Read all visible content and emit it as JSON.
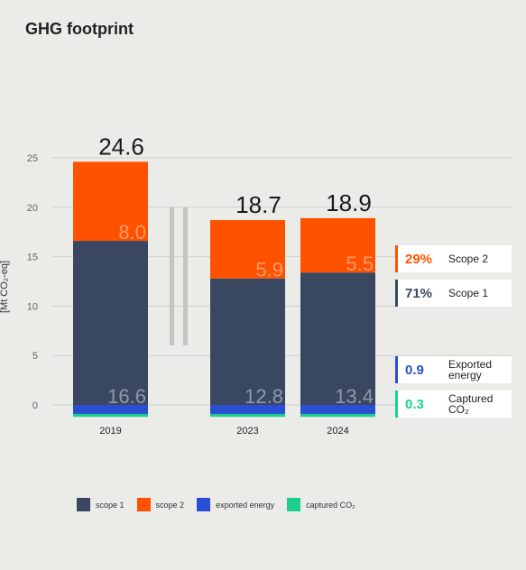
{
  "title": "GHG footprint",
  "colors": {
    "scope1": "#394760",
    "scope2": "#ff5200",
    "exported": "#2a4ed3",
    "captured": "#1ccf8f",
    "grid": "#cfcfcf",
    "break": "#c4c4c4"
  },
  "chart_data": {
    "type": "bar",
    "stacked": true,
    "categories": [
      "2019",
      "2023",
      "2024"
    ],
    "ylabel": "[Mt CO₂-eq]",
    "ylim": [
      -1.5,
      25
    ],
    "yticks": [
      "25",
      "20",
      "15",
      "10",
      "5",
      "0"
    ],
    "series": [
      {
        "name": "scope 1",
        "values": [
          16.6,
          12.8,
          13.4
        ],
        "labels": [
          "16.6",
          "12.8",
          "13.4"
        ]
      },
      {
        "name": "scope 2",
        "values": [
          8.0,
          5.9,
          5.5
        ],
        "labels": [
          "8.0",
          "5.9",
          "5.5"
        ]
      },
      {
        "name": "exported energy",
        "values": [
          -0.9,
          -0.9,
          -0.9
        ]
      },
      {
        "name": "captured CO₂",
        "values": [
          -0.3,
          -0.3,
          -0.3
        ]
      }
    ],
    "totals": [
      "24.6",
      "18.7",
      "18.9"
    ],
    "axis_break_between": [
      "2019",
      "2023"
    ],
    "legend_position": "bottom-left"
  },
  "callouts": [
    {
      "pct": "29%",
      "label_lines": [
        "Scope 2"
      ],
      "color": "#ff5200"
    },
    {
      "pct": "71%",
      "label_lines": [
        "Scope 1"
      ],
      "color": "#394760"
    },
    {
      "pct": "0.9",
      "label_lines": [
        "Exported",
        "energy"
      ],
      "color": "#2a4ed3"
    },
    {
      "pct": "0.3",
      "label_lines": [
        "Captured",
        "CO₂"
      ],
      "color": "#1ccf8f"
    }
  ],
  "legend": [
    {
      "label": "scope 1",
      "color": "#394760"
    },
    {
      "label": "scope 2",
      "color": "#ff5200"
    },
    {
      "label": "exported energy",
      "color": "#2a4ed3"
    },
    {
      "label": "captured CO₂",
      "color": "#1ccf8f"
    }
  ]
}
